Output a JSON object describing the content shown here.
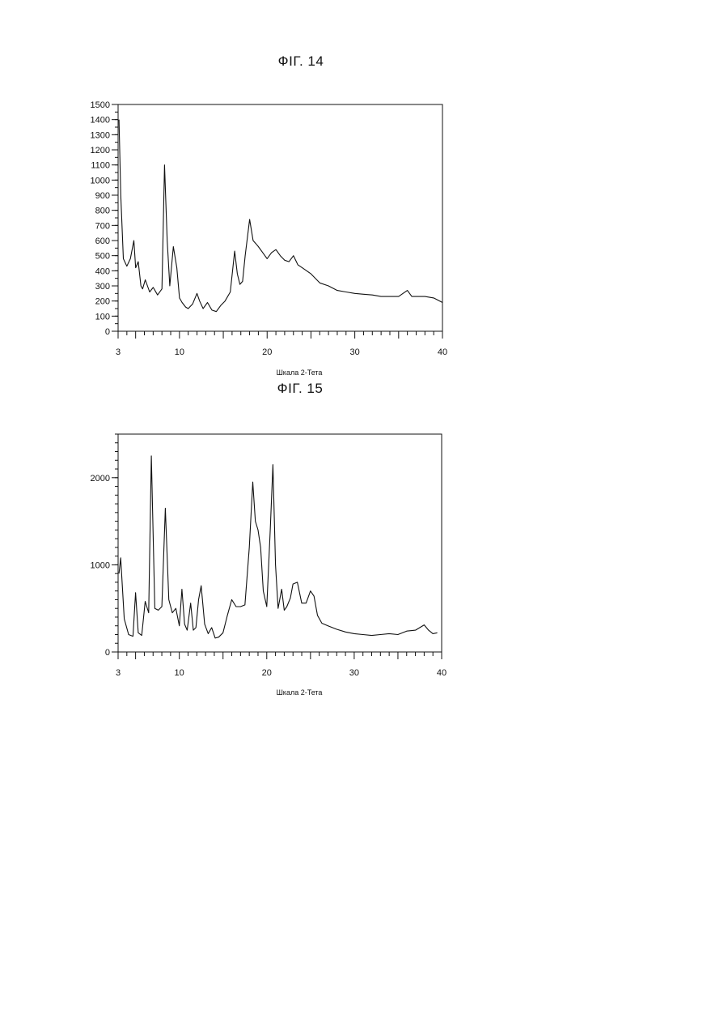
{
  "figures": [
    {
      "label": "ФІГ. 14"
    },
    {
      "label": "ФІГ. 15"
    }
  ],
  "chart_data": [
    {
      "type": "line",
      "title": "ФІГ. 14",
      "xlabel": "Шкала 2-Тета",
      "ylabel": "",
      "xlim": [
        3,
        40
      ],
      "ylim": [
        0,
        1500
      ],
      "x_ticks": [
        3,
        10,
        20,
        30,
        40
      ],
      "y_ticks": [
        0,
        100,
        200,
        300,
        400,
        500,
        600,
        700,
        800,
        900,
        1000,
        1100,
        1200,
        1300,
        1400,
        1500
      ],
      "grid": false,
      "series": [
        {
          "x": [
            3.1,
            3.3,
            3.6,
            4.0,
            4.4,
            4.8,
            5.0,
            5.3,
            5.6,
            5.8,
            6.1,
            6.6,
            7.0,
            7.5,
            8.0,
            8.3,
            8.6,
            8.9,
            9.3,
            9.7,
            10.0,
            10.3,
            10.7,
            11.0,
            11.5,
            12.0,
            12.3,
            12.7,
            13.2,
            13.7,
            14.2,
            14.7,
            15.2,
            15.8,
            16.3,
            16.6,
            16.9,
            17.2,
            17.5,
            18.0,
            18.4,
            18.7,
            19.0,
            19.5,
            20.0,
            20.5,
            21.0,
            21.5,
            22.0,
            22.5,
            23.0,
            23.5,
            24.0,
            24.5,
            25.0,
            26.0,
            27.0,
            28.0,
            29.0,
            30.0,
            31.0,
            32.0,
            33.0,
            34.0,
            35.0,
            36.0,
            36.5,
            37.0,
            38.0,
            39.0,
            40.0
          ],
          "y": [
            1400,
            900,
            480,
            430,
            480,
            600,
            420,
            460,
            300,
            280,
            340,
            260,
            290,
            240,
            280,
            1100,
            600,
            300,
            560,
            420,
            220,
            190,
            160,
            150,
            180,
            250,
            200,
            150,
            190,
            140,
            130,
            170,
            200,
            260,
            530,
            380,
            310,
            330,
            500,
            740,
            600,
            580,
            560,
            520,
            480,
            520,
            540,
            500,
            470,
            460,
            500,
            440,
            420,
            400,
            380,
            320,
            300,
            270,
            260,
            250,
            245,
            240,
            230,
            230,
            230,
            270,
            230,
            230,
            230,
            220,
            190
          ]
        }
      ]
    },
    {
      "type": "line",
      "title": "ФІГ. 15",
      "xlabel": "Шкала 2-Тета",
      "ylabel": "",
      "xlim": [
        3,
        40
      ],
      "ylim": [
        0,
        2500
      ],
      "x_ticks": [
        3,
        10,
        20,
        30,
        40
      ],
      "y_ticks": [
        0,
        1000,
        2000
      ],
      "grid": false,
      "series": [
        {
          "x": [
            3.1,
            3.3,
            3.7,
            4.2,
            4.7,
            5.0,
            5.3,
            5.7,
            6.1,
            6.5,
            6.8,
            7.2,
            7.6,
            8.0,
            8.4,
            8.8,
            9.2,
            9.6,
            10.0,
            10.3,
            10.6,
            10.9,
            11.3,
            11.6,
            11.9,
            12.2,
            12.5,
            12.9,
            13.3,
            13.7,
            14.1,
            14.5,
            15.0,
            15.5,
            16.0,
            16.5,
            17.0,
            17.5,
            18.0,
            18.4,
            18.7,
            19.0,
            19.3,
            19.6,
            20.0,
            20.4,
            20.7,
            21.0,
            21.3,
            21.7,
            22.0,
            22.3,
            22.7,
            23.0,
            23.5,
            24.0,
            24.5,
            25.0,
            25.4,
            25.8,
            26.3,
            27.0,
            28.0,
            29.0,
            30.0,
            31.0,
            32.0,
            33.0,
            34.0,
            35.0,
            36.0,
            37.0,
            38.0,
            38.5,
            39.0,
            39.5
          ],
          "y": [
            900,
            1080,
            380,
            200,
            180,
            680,
            220,
            190,
            580,
            450,
            2250,
            500,
            480,
            520,
            1650,
            600,
            450,
            500,
            300,
            720,
            320,
            250,
            560,
            250,
            280,
            600,
            760,
            320,
            210,
            280,
            160,
            170,
            220,
            420,
            600,
            520,
            520,
            540,
            1200,
            1950,
            1500,
            1400,
            1200,
            700,
            520,
            1400,
            2150,
            1000,
            500,
            720,
            480,
            520,
            620,
            780,
            800,
            560,
            560,
            700,
            640,
            420,
            330,
            300,
            260,
            230,
            210,
            200,
            190,
            200,
            210,
            200,
            240,
            250,
            310,
            250,
            210,
            220
          ]
        }
      ]
    }
  ]
}
